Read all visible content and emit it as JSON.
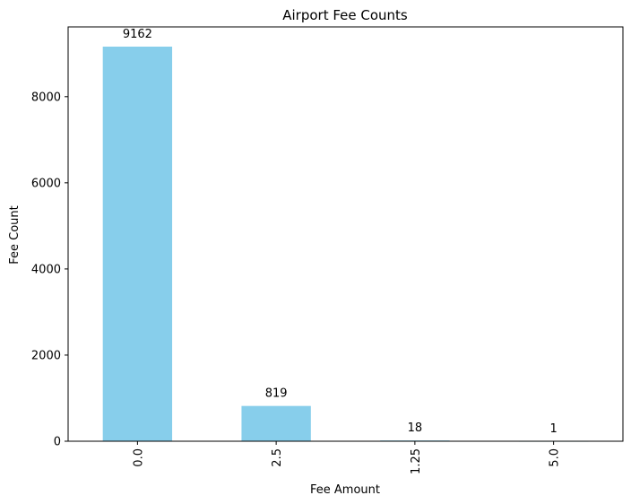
{
  "chart_data": {
    "type": "bar",
    "title": "Airport Fee Counts",
    "xlabel": "Fee Amount",
    "ylabel": "Fee Count",
    "categories": [
      "0.0",
      "2.5",
      "1.25",
      "5.0"
    ],
    "values": [
      9162,
      819,
      18,
      1
    ],
    "data_labels": [
      "9162",
      "819",
      "18",
      "1"
    ],
    "ylim": [
      0,
      9620
    ],
    "yticks": [
      0,
      2000,
      4000,
      6000,
      8000
    ],
    "ytick_labels": [
      "0",
      "2000",
      "4000",
      "6000",
      "8000"
    ],
    "bar_color": "#87ceeb",
    "grid": false,
    "x_tick_rotation": 90
  }
}
